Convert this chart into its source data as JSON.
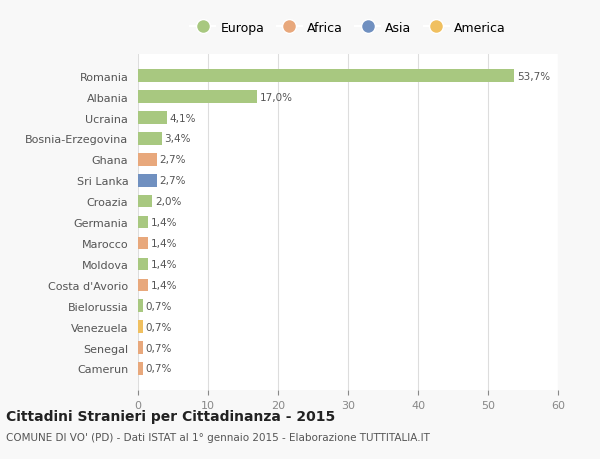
{
  "categories": [
    "Camerun",
    "Senegal",
    "Venezuela",
    "Bielorussia",
    "Costa d'Avorio",
    "Moldova",
    "Marocco",
    "Germania",
    "Croazia",
    "Sri Lanka",
    "Ghana",
    "Bosnia-Erzegovina",
    "Ucraina",
    "Albania",
    "Romania"
  ],
  "values": [
    0.7,
    0.7,
    0.7,
    0.7,
    1.4,
    1.4,
    1.4,
    1.4,
    2.0,
    2.7,
    2.7,
    3.4,
    4.1,
    17.0,
    53.7
  ],
  "colors": [
    "#e8a87c",
    "#e8a87c",
    "#f0c060",
    "#a8c880",
    "#e8a87c",
    "#a8c880",
    "#e8a87c",
    "#a8c880",
    "#a8c880",
    "#7090c0",
    "#e8a87c",
    "#a8c880",
    "#a8c880",
    "#a8c880",
    "#a8c880"
  ],
  "labels": [
    "0,7%",
    "0,7%",
    "0,7%",
    "0,7%",
    "1,4%",
    "1,4%",
    "1,4%",
    "1,4%",
    "2,0%",
    "2,7%",
    "2,7%",
    "3,4%",
    "4,1%",
    "17,0%",
    "53,7%"
  ],
  "legend": [
    {
      "label": "Europa",
      "color": "#a8c880"
    },
    {
      "label": "Africa",
      "color": "#e8a87c"
    },
    {
      "label": "Asia",
      "color": "#7090c0"
    },
    {
      "label": "America",
      "color": "#f0c060"
    }
  ],
  "title": "Cittadini Stranieri per Cittadinanza - 2015",
  "subtitle": "COMUNE DI VO' (PD) - Dati ISTAT al 1° gennaio 2015 - Elaborazione TUTTITALIA.IT",
  "xlim": [
    0,
    60
  ],
  "xticks": [
    0,
    10,
    20,
    30,
    40,
    50,
    60
  ],
  "bg_color": "#f8f8f8",
  "bar_bg_color": "#ffffff",
  "grid_color": "#dddddd"
}
